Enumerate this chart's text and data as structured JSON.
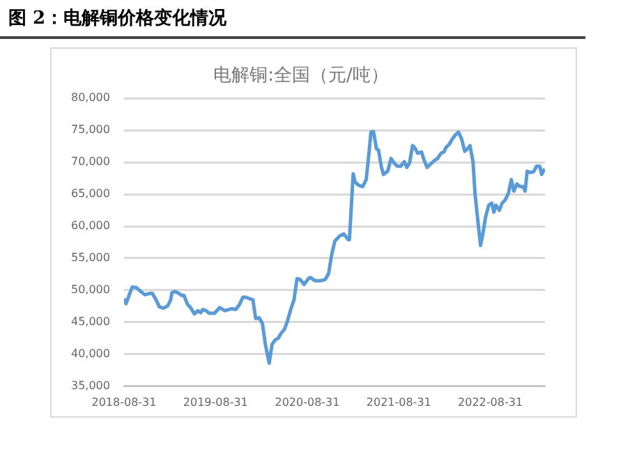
{
  "chart_data": {
    "type": "line",
    "title": "图 2：电解铜价格变化情况",
    "subtitle": "电解铜:全国（元/吨）",
    "x": [
      "2018-08-31",
      "2018-09-08",
      "2018-09-20",
      "2018-10-03",
      "2018-10-20",
      "2018-11-06",
      "2018-11-22",
      "2018-12-12",
      "2018-12-22",
      "2019-01-06",
      "2019-01-19",
      "2019-02-05",
      "2019-02-22",
      "2019-03-05",
      "2019-03-10",
      "2019-03-22",
      "2019-04-08",
      "2019-04-17",
      "2019-04-27",
      "2019-05-11",
      "2019-05-21",
      "2019-06-08",
      "2019-06-21",
      "2019-07-03",
      "2019-07-11",
      "2019-07-25",
      "2019-08-05",
      "2019-08-27",
      "2019-09-17",
      "2019-10-07",
      "2019-11-01",
      "2019-11-20",
      "2019-12-05",
      "2019-12-18",
      "2019-12-30",
      "2020-01-12",
      "2020-01-27",
      "2020-02-07",
      "2020-02-21",
      "2020-03-05",
      "2020-03-17",
      "2020-04-01",
      "2020-04-12",
      "2020-04-24",
      "2020-05-07",
      "2020-05-19",
      "2020-06-01",
      "2020-06-13",
      "2020-06-26",
      "2020-07-09",
      "2020-07-21",
      "2020-08-02",
      "2020-08-18",
      "2020-09-04",
      "2020-09-12",
      "2020-09-30",
      "2020-10-25",
      "2020-11-11",
      "2020-11-24",
      "2020-12-06",
      "2020-12-19",
      "2021-01-08",
      "2021-01-24",
      "2021-02-10",
      "2021-02-15",
      "2021-03-02",
      "2021-03-10",
      "2021-03-24",
      "2021-04-09",
      "2021-04-23",
      "2021-05-04",
      "2021-05-12",
      "2021-05-22",
      "2021-06-03",
      "2021-06-11",
      "2021-06-23",
      "2021-07-01",
      "2021-07-18",
      "2021-07-31",
      "2021-08-12",
      "2021-08-24",
      "2021-09-08",
      "2021-09-22",
      "2021-10-02",
      "2021-10-13",
      "2021-10-25",
      "2021-11-02",
      "2021-11-15",
      "2021-11-30",
      "2021-12-10",
      "2021-12-22",
      "2022-01-04",
      "2022-01-21",
      "2022-02-02",
      "2022-02-15",
      "2022-02-27",
      "2022-03-07",
      "2022-03-20",
      "2022-04-01",
      "2022-04-14",
      "2022-04-26",
      "2022-05-09",
      "2022-05-21",
      "2022-06-01",
      "2022-06-11",
      "2022-06-23",
      "2022-07-01",
      "2022-07-15",
      "2022-07-23",
      "2022-07-31",
      "2022-08-12",
      "2022-08-25",
      "2022-09-06",
      "2022-09-14",
      "2022-09-22",
      "2022-10-06",
      "2022-10-17",
      "2022-10-29",
      "2022-11-11",
      "2022-11-23",
      "2022-12-03",
      "2022-12-15",
      "2022-12-28",
      "2023-01-09",
      "2023-01-17",
      "2023-01-25",
      "2023-02-07",
      "2023-02-19",
      "2023-03-04",
      "2023-03-16",
      "2023-03-24",
      "2023-04-05"
    ],
    "series": [
      {
        "color": "#5b9bd5",
        "values": [
          48700,
          47900,
          49200,
          50500,
          50400,
          49800,
          49300,
          49500,
          49500,
          48500,
          47400,
          47200,
          47600,
          48500,
          49600,
          49800,
          49500,
          49200,
          49200,
          47800,
          47400,
          46300,
          46800,
          46500,
          47000,
          46800,
          46400,
          46400,
          47300,
          46800,
          47100,
          47000,
          47800,
          48900,
          48900,
          48700,
          48500,
          45600,
          45700,
          44800,
          41500,
          38600,
          41500,
          42200,
          42500,
          43300,
          43900,
          45200,
          47000,
          48500,
          51800,
          51700,
          50900,
          51800,
          52000,
          51500,
          51500,
          51700,
          52600,
          55500,
          57700,
          58500,
          58800,
          57900,
          57900,
          68200,
          66900,
          66400,
          66200,
          67300,
          71400,
          74700,
          74800,
          72100,
          71900,
          69200,
          68100,
          68600,
          70600,
          69900,
          69400,
          69400,
          70100,
          69200,
          69900,
          72600,
          72300,
          71400,
          71600,
          70300,
          69200,
          69700,
          70300,
          70600,
          71400,
          71600,
          72300,
          72800,
          73600,
          74300,
          74700,
          73600,
          71700,
          72100,
          72600,
          70100,
          65100,
          59900,
          57000,
          58500,
          61400,
          63300,
          63600,
          62200,
          63300,
          62500,
          63600,
          64100,
          65100,
          67300,
          65500,
          66600,
          66200,
          66200,
          65500,
          68600,
          68400,
          68500,
          69400,
          69400,
          68100,
          69000
        ]
      }
    ],
    "xlim": [
      "2018-08-31",
      "2023-04-06"
    ],
    "xticks": [
      "2018-08-31",
      "2019-08-31",
      "2020-08-31",
      "2021-08-31",
      "2022-08-31"
    ],
    "ylim": [
      35000,
      80000
    ],
    "yticks": [
      {
        "value": 35000,
        "label": "35,000"
      },
      {
        "value": 40000,
        "label": "40,000"
      },
      {
        "value": 45000,
        "label": "45,000"
      },
      {
        "value": 50000,
        "label": "50,000"
      },
      {
        "value": 55000,
        "label": "55,000"
      },
      {
        "value": 60000,
        "label": "60,000"
      },
      {
        "value": 65000,
        "label": "65,000"
      },
      {
        "value": 70000,
        "label": "70,000"
      },
      {
        "value": 75000,
        "label": "75,000"
      },
      {
        "value": 80000,
        "label": "80,000"
      }
    ],
    "grid": "y",
    "legend": false,
    "marker": "none",
    "line_style": "solid"
  }
}
